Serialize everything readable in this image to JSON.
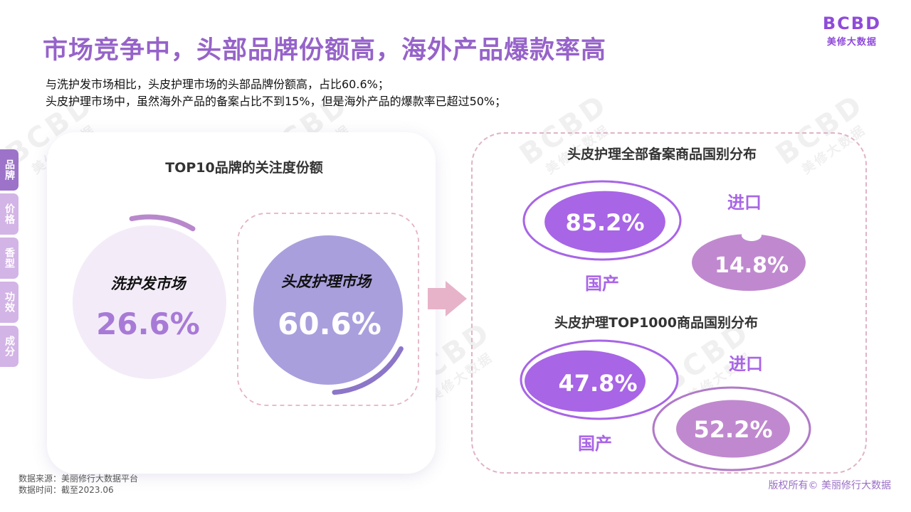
{
  "header": {
    "title": "市场竞争中，头部品牌份额高，海外产品爆款率高",
    "intro_lines": [
      "与洗护发市场相比，头皮护理市场的头部品牌份额高，占比60.6%；",
      "头皮护理市场中，虽然海外产品的备案占比不到15%，但是海外产品的爆款率已超过50%；"
    ]
  },
  "brand": {
    "mark": "BCBD",
    "name": "美修大数据"
  },
  "side_tabs": [
    {
      "label": "品牌",
      "active": true
    },
    {
      "label": "价格",
      "active": false
    },
    {
      "label": "香型",
      "active": false
    },
    {
      "label": "功效",
      "active": false
    },
    {
      "label": "成分",
      "active": false
    }
  ],
  "watermark": {
    "mark": "BCBD",
    "text": "美修大数据"
  },
  "colors": {
    "domestic": "#a865e6",
    "imported": "#c089cf",
    "light_circle": "#f3ecf8",
    "dark_circle": "#aa9fdd",
    "arrow": "#e7b3c9"
  },
  "chart_data": [
    {
      "type": "pie",
      "title": "TOP10品牌的关注度份额",
      "categories": [
        "洗护发市场",
        "头皮护理市场"
      ],
      "values": [
        26.6,
        60.6
      ],
      "labels": [
        "26.6%",
        "60.6%"
      ]
    },
    {
      "type": "pie",
      "title": "头皮护理全部备案商品国别分布",
      "categories": [
        "国产",
        "进口"
      ],
      "values": [
        85.2,
        14.8
      ],
      "labels": [
        "85.2%",
        "14.8%"
      ]
    },
    {
      "type": "pie",
      "title": "头皮护理TOP1000商品国别分布",
      "categories": [
        "国产",
        "进口"
      ],
      "values": [
        47.8,
        52.2
      ],
      "labels": [
        "47.8%",
        "52.2%"
      ]
    }
  ],
  "footer": {
    "source_lines": [
      "数据来源：美丽修行大数据平台",
      "数据时间：截至2023.06"
    ],
    "copyright": "版权所有© 美丽修行大数据"
  }
}
